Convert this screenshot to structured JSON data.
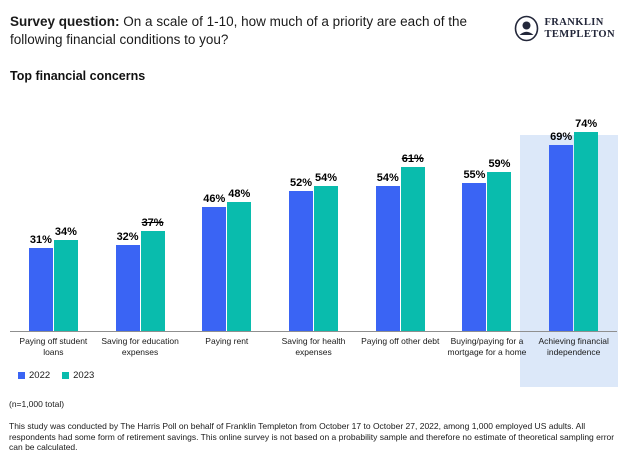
{
  "header": {
    "prefix": "Survey question:",
    "question": "On a scale of 1-10, how much of a priority are each of the following financial conditions to you?"
  },
  "logo": {
    "line1": "FRANKLIN",
    "line2": "TEMPLETON",
    "icon": "franklin-portrait-icon"
  },
  "chart_title": "Top financial concerns",
  "chart_data": {
    "type": "bar",
    "title": "Top financial concerns",
    "categories": [
      "Paying off student loans",
      "Saving for education expenses",
      "Paying rent",
      "Saving for health expenses",
      "Paying off other debt",
      "Buying/paying for a mortgage for a home",
      "Achieving financial independence"
    ],
    "series": [
      {
        "name": "2022",
        "color": "#3a64f4",
        "values": [
          31,
          32,
          46,
          52,
          54,
          55,
          69
        ],
        "strikethrough_indices": []
      },
      {
        "name": "2023",
        "color": "#09bcad",
        "values": [
          34,
          37,
          48,
          54,
          61,
          59,
          74
        ],
        "strikethrough_indices": [
          1,
          4
        ]
      }
    ],
    "value_suffix": "%",
    "highlighted_category_index": 6,
    "highlight_color": "#dce8f9",
    "ylim": [
      0,
      85
    ],
    "grid": false,
    "legend_position": "bottom-left"
  },
  "footnotes": {
    "sample": "(n=1,000 total)",
    "methodology": "This study was conducted by The Harris Poll on behalf of Franklin Templeton from October 17 to October 27, 2022, among 1,000 employed US adults. All respondents had some form of retirement savings. This online survey is not based on a probability sample and therefore no estimate of theoretical sampling error can be calculated."
  }
}
